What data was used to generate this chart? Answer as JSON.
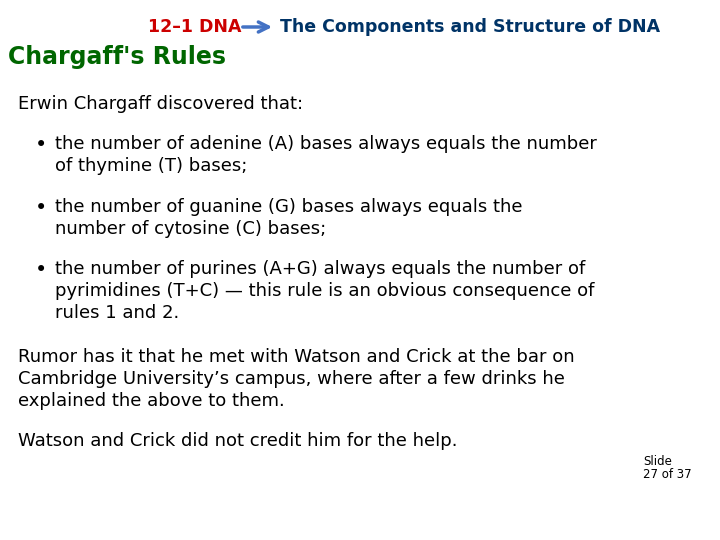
{
  "bg_color": "#ffffff",
  "header_label": "12–1 DNA",
  "header_label_color": "#cc0000",
  "arrow_color": "#4472c4",
  "header_subtitle": "The Components and Structure of DNA",
  "header_subtitle_color": "#003366",
  "section_title": "Chargaff's Rules",
  "section_title_color": "#006600",
  "intro_text": "Erwin Chargaff discovered that:",
  "bullet1_line1": "the number of adenine (A) bases always equals the number",
  "bullet1_line2": "of thymine (T) bases;",
  "bullet2_line1": "the number of guanine (G) bases always equals the",
  "bullet2_line2": "number of cytosine (C) bases;",
  "bullet3_line1": "the number of purines (A+G) always equals the number of",
  "bullet3_line2": "pyrimidines (T+C) — this rule is an obvious consequence of",
  "bullet3_line3": "rules 1 and 2.",
  "rumor_line1": "Rumor has it that he met with Watson and Crick at the bar on",
  "rumor_line2": "Cambridge University’s campus, where after a few drinks he",
  "rumor_line3": "explained the above to them.",
  "watson_line": "Watson and Crick did not credit him for the help.",
  "slide_label": "Slide",
  "slide_number": "27 of 37",
  "text_color": "#000000",
  "font_family": "DejaVu Sans",
  "main_fontsize": 13.0,
  "header_fontsize": 12.5,
  "title_fontsize": 17.0,
  "slide_fontsize": 8.5
}
